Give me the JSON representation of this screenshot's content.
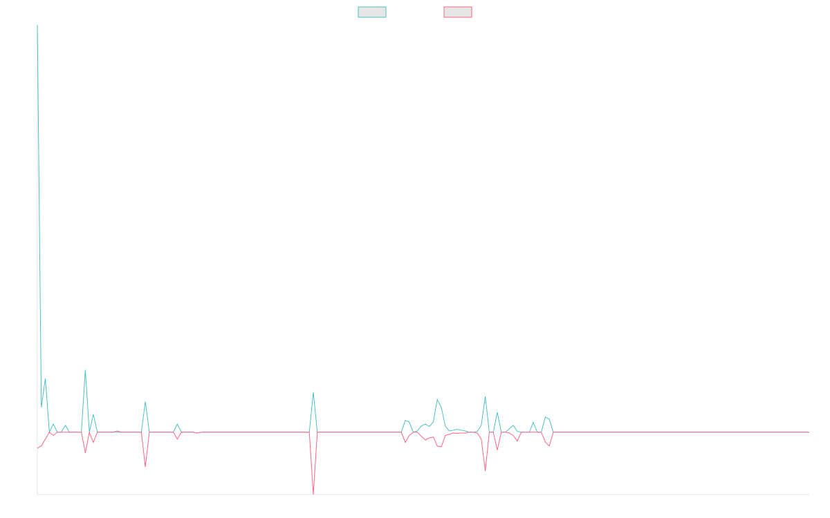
{
  "chart_data": {
    "type": "line",
    "legend": "top",
    "categories": [
      null,
      null,
      null,
      null,
      null,
      null,
      null,
      null,
      null,
      null,
      null,
      null,
      null,
      null,
      null,
      null,
      null,
      null,
      null,
      null,
      null,
      null,
      null,
      null,
      null,
      null,
      null,
      null,
      null,
      null,
      null,
      null,
      null,
      null,
      null,
      null,
      null,
      null,
      null,
      null,
      null,
      null,
      null,
      null,
      null,
      null,
      null,
      null,
      null,
      null,
      null,
      null,
      null,
      null,
      null,
      null,
      null,
      null,
      null,
      null,
      null,
      null,
      null,
      null,
      null,
      null,
      null,
      null,
      null,
      null,
      null,
      null,
      null,
      null,
      null,
      null,
      null,
      null,
      null,
      null,
      null,
      null,
      null,
      null,
      null,
      null,
      null,
      null,
      null,
      null,
      null,
      null,
      null,
      null,
      null,
      null,
      null,
      null,
      null,
      null,
      null,
      null,
      null,
      null,
      null,
      null,
      null,
      null,
      null,
      null,
      null,
      null,
      null,
      null,
      null,
      null,
      null,
      null,
      null,
      null,
      null,
      null,
      null,
      null,
      null,
      null,
      null,
      null,
      null,
      null,
      null,
      null,
      null,
      null,
      null,
      null,
      null,
      null,
      null,
      null,
      null,
      null,
      null,
      null,
      null,
      null,
      null,
      null,
      null,
      null,
      null,
      null,
      null,
      null,
      null,
      null,
      null,
      null,
      null,
      null,
      null,
      null,
      null,
      null,
      null,
      null,
      null,
      null,
      null,
      null,
      null,
      null,
      null,
      null,
      null,
      null,
      null,
      null,
      null,
      null,
      null,
      null,
      null,
      null,
      null,
      null,
      null,
      null,
      null,
      null,
      null,
      null,
      null,
      null
    ],
    "ylim": [
      -15.3,
      100
    ],
    "series": [
      {
        "color": "#4bc0c0",
        "values": [
          100,
          6.1,
          13.2,
          0,
          2,
          0,
          0,
          1.7,
          0,
          0,
          0,
          0,
          15.3,
          0,
          4.4,
          0,
          0,
          0,
          0,
          0,
          0,
          0,
          0,
          0,
          0,
          0,
          0,
          7.5,
          0,
          0,
          0,
          0,
          0,
          0,
          0,
          2,
          0,
          0,
          0,
          0,
          -0.2,
          0,
          0,
          0,
          0,
          0,
          0,
          0,
          0,
          0,
          0,
          0,
          0,
          0,
          0,
          0,
          0,
          0,
          0,
          0,
          0,
          0,
          0,
          0,
          0,
          0,
          0,
          0,
          0,
          9.8,
          0,
          0,
          0,
          0,
          0,
          0,
          0,
          0,
          0,
          0,
          0,
          0,
          0,
          0,
          0,
          0,
          0,
          0,
          0,
          0,
          0,
          0,
          2.9,
          2.5,
          0,
          0.3,
          1.5,
          2,
          1.4,
          2.5,
          8,
          6.1,
          1.5,
          0.3,
          0.5,
          0.7,
          0.5,
          0.3,
          0,
          0,
          0.2,
          1.7,
          8.8,
          0,
          0,
          4.9,
          0,
          0,
          0.8,
          1.7,
          0.2,
          0,
          0,
          0,
          2.4,
          0,
          0,
          3.7,
          3.2,
          0,
          0,
          0,
          0,
          0,
          0,
          0,
          0,
          0,
          0,
          0,
          0,
          0,
          0,
          0,
          0,
          0,
          0,
          0,
          0,
          0,
          0,
          0,
          0,
          0,
          0,
          0,
          0,
          0,
          0,
          0,
          0,
          0,
          0,
          0,
          0,
          0,
          0,
          0,
          0,
          0,
          0,
          0,
          0,
          0,
          0,
          0,
          0,
          0,
          0,
          0,
          0,
          0,
          0,
          0,
          0,
          0,
          0,
          0,
          0,
          0,
          0,
          0,
          0,
          0
        ]
      },
      {
        "color": "#ff6384",
        "values": [
          -3.9,
          -3.4,
          -1.7,
          0,
          -0.8,
          0,
          0,
          0,
          0,
          0,
          0,
          0,
          -5.1,
          0,
          -2.5,
          0,
          0,
          0,
          0,
          0,
          0.3,
          0,
          0,
          0,
          0,
          0,
          0,
          -8.5,
          0,
          0,
          0,
          0,
          0,
          0,
          0,
          -1.7,
          0,
          0,
          0,
          0,
          -0.2,
          0,
          0,
          0,
          0,
          0,
          0,
          0,
          0,
          0,
          0,
          0,
          0,
          0,
          0,
          0,
          0,
          0,
          0,
          0,
          0,
          0,
          0,
          0,
          0,
          0,
          0,
          0,
          0,
          -15.3,
          0,
          0,
          0,
          0,
          0,
          0,
          0,
          0,
          0,
          0,
          0,
          0,
          0,
          0,
          0,
          0,
          0,
          0,
          0,
          0,
          0,
          0,
          -2.5,
          -0.8,
          0,
          0,
          -1,
          -1.9,
          -1.4,
          -1.2,
          -3.4,
          -3.6,
          -0.8,
          -0.5,
          -0.2,
          -0.3,
          -0.2,
          -0.2,
          0,
          0,
          -0.2,
          -1.7,
          -9.5,
          0,
          0,
          -4.4,
          0,
          0,
          -0.2,
          -0.8,
          -2.2,
          0,
          0,
          0,
          0,
          0,
          0,
          -2.4,
          -3.4,
          0,
          0,
          0,
          0,
          0,
          0,
          0,
          0,
          0,
          0,
          0,
          0,
          0,
          0,
          0,
          0,
          0,
          0,
          0,
          0,
          0,
          0,
          0,
          0,
          0,
          0,
          0,
          0,
          0,
          0,
          0,
          0,
          0,
          0,
          0,
          0,
          0,
          0,
          0,
          0,
          0,
          0,
          0,
          0,
          0,
          0,
          0,
          0,
          0,
          0,
          0,
          0,
          0,
          0,
          0,
          0,
          0,
          0,
          0,
          0,
          0,
          0,
          0,
          0,
          0
        ]
      }
    ]
  }
}
